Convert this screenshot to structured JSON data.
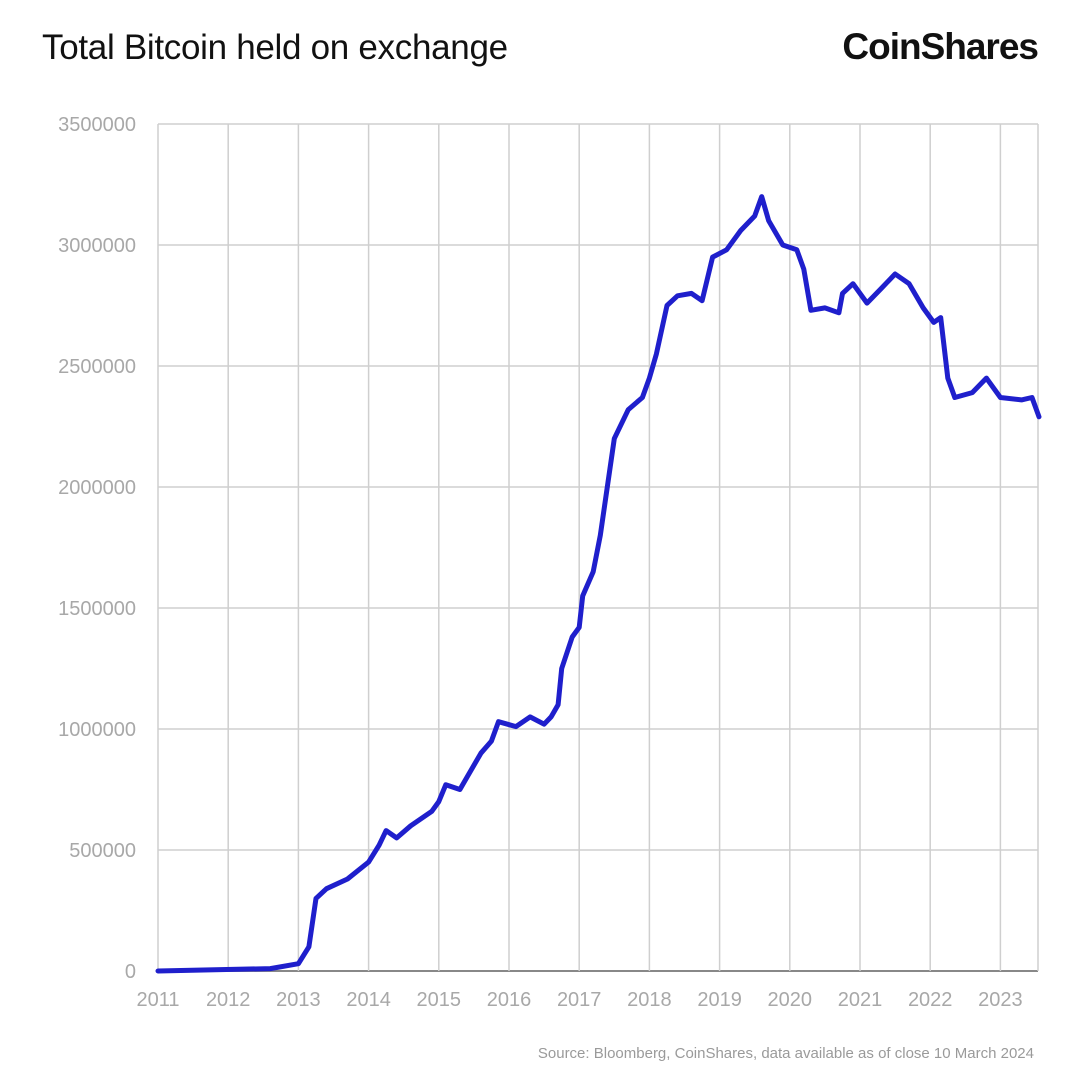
{
  "chart_data": {
    "type": "line",
    "title": "Total Bitcoin held on exchange",
    "xlabel": "",
    "ylabel": "",
    "xlim": [
      2011,
      2023.55
    ],
    "ylim": [
      0,
      3500000
    ],
    "grid": true,
    "line_color": "#1f1fcc",
    "x_ticks": [
      "2011",
      "2012",
      "2013",
      "2014",
      "2015",
      "2016",
      "2017",
      "2018",
      "2019",
      "2020",
      "2021",
      "2022",
      "2023"
    ],
    "y_ticks": [
      "0",
      "500000",
      "1000000",
      "1500000",
      "2000000",
      "2500000",
      "3000000",
      "3500000"
    ],
    "series": [
      {
        "x": [
          2011.0,
          2012.6,
          2013.0,
          2013.15,
          2013.25,
          2013.4,
          2013.7,
          2014.0,
          2014.15,
          2014.25,
          2014.4,
          2014.6,
          2014.9,
          2015.0,
          2015.1,
          2015.3,
          2015.4,
          2015.6,
          2015.75,
          2015.85,
          2016.1,
          2016.3,
          2016.5,
          2016.6,
          2016.7,
          2016.75,
          2016.9,
          2017.0,
          2017.05,
          2017.2,
          2017.3,
          2017.4,
          2017.5,
          2017.7,
          2017.9,
          2018.0,
          2018.1,
          2018.25,
          2018.4,
          2018.6,
          2018.75,
          2018.9,
          2019.1,
          2019.3,
          2019.5,
          2019.6,
          2019.7,
          2019.9,
          2020.1,
          2020.2,
          2020.3,
          2020.5,
          2020.7,
          2020.75,
          2020.9,
          2021.1,
          2021.3,
          2021.5,
          2021.7,
          2021.9,
          2022.05,
          2022.15,
          2022.25,
          2022.35,
          2022.6,
          2022.8,
          2023.0,
          2023.3,
          2023.45,
          2023.55
        ],
        "values": [
          0,
          10000,
          30000,
          100000,
          300000,
          340000,
          380000,
          450000,
          520000,
          580000,
          550000,
          600000,
          660000,
          700000,
          770000,
          750000,
          800000,
          900000,
          950000,
          1030000,
          1010000,
          1050000,
          1020000,
          1050000,
          1100000,
          1250000,
          1380000,
          1420000,
          1550000,
          1650000,
          1800000,
          2000000,
          2200000,
          2320000,
          2370000,
          2450000,
          2550000,
          2750000,
          2790000,
          2800000,
          2770000,
          2950000,
          2980000,
          3060000,
          3120000,
          3200000,
          3100000,
          3000000,
          2980000,
          2900000,
          2730000,
          2740000,
          2720000,
          2800000,
          2840000,
          2760000,
          2820000,
          2880000,
          2840000,
          2740000,
          2680000,
          2700000,
          2450000,
          2370000,
          2390000,
          2450000,
          2370000,
          2360000,
          2370000,
          2290000
        ]
      }
    ]
  },
  "header": {
    "title": "Total Bitcoin held on exchange",
    "logo": "CoinShares"
  },
  "footer": {
    "source": "Source: Bloomberg, CoinShares, data available as of close 10 March 2024"
  }
}
